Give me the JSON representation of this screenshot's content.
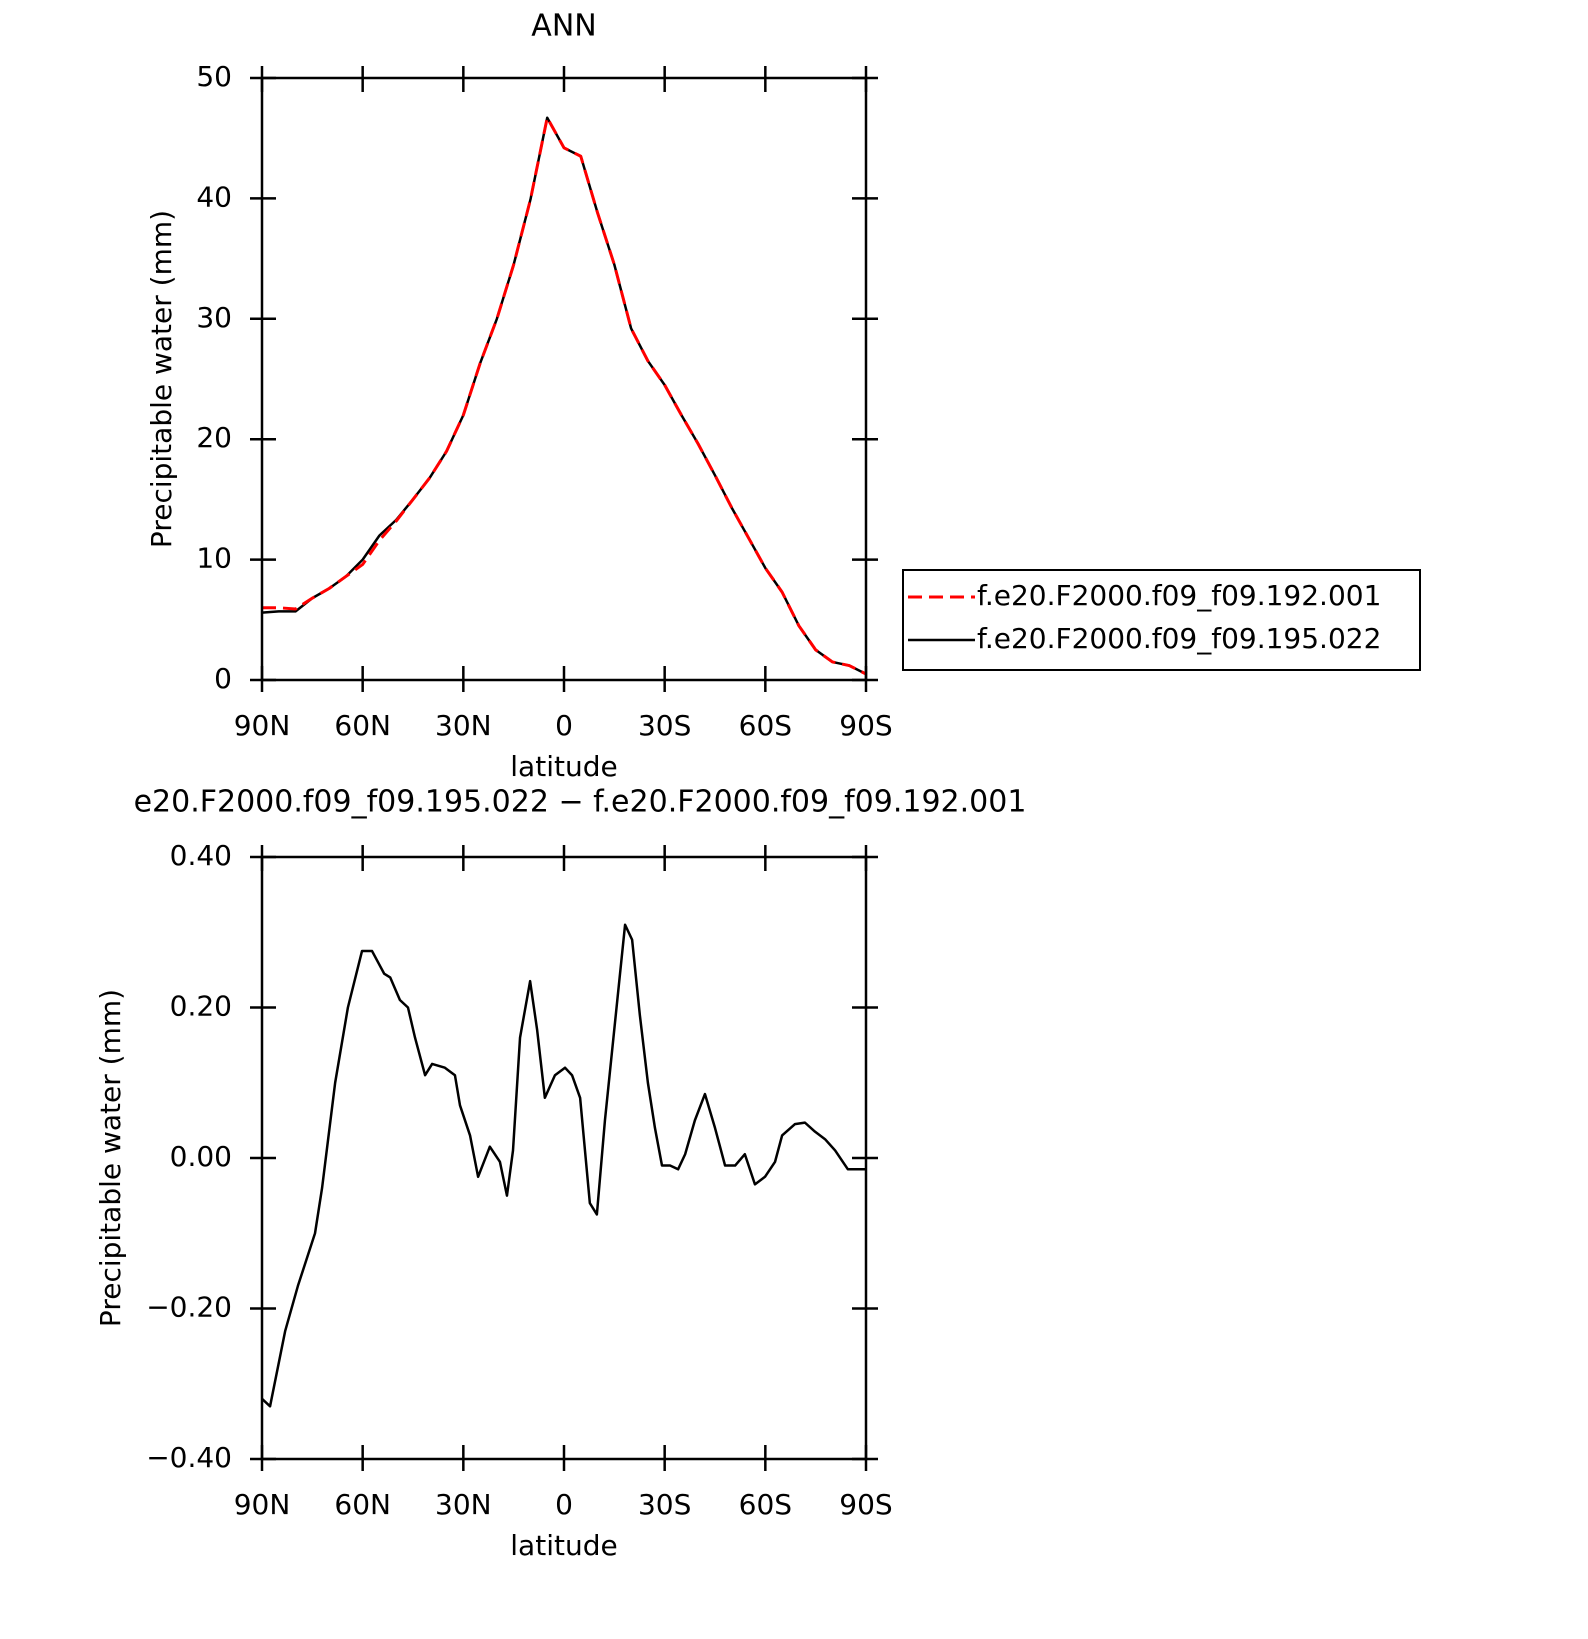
{
  "chart_data": [
    {
      "type": "line",
      "title": "ANN",
      "xlabel": "latitude",
      "ylabel": "Precipitable water (mm)",
      "x": [
        90,
        85,
        80,
        75,
        70,
        65,
        60,
        55,
        50,
        45,
        40,
        35,
        30,
        25,
        20,
        15,
        10,
        5,
        0,
        -5,
        -10,
        -15,
        -20,
        -25,
        -30,
        -35,
        -40,
        -45,
        -50,
        -55,
        -60,
        -65,
        -70,
        -75,
        -80,
        -85,
        -90
      ],
      "series": [
        {
          "name": "f.e20.F2000.f09_f09.192.001",
          "color": "#ff0000",
          "dash": true,
          "values": [
            6.0,
            6.0,
            5.9,
            6.8,
            7.6,
            8.6,
            9.6,
            11.6,
            13.2,
            15.0,
            16.8,
            19.0,
            22.0,
            26.3,
            30.0,
            34.5,
            39.9,
            46.7,
            44.2,
            43.5,
            38.8,
            34.5,
            29.2,
            26.5,
            24.5,
            22.0,
            19.6,
            17.0,
            14.3,
            11.8,
            9.3,
            7.3,
            4.5,
            2.5,
            1.5,
            1.2,
            0.5
          ]
        },
        {
          "name": "f.e20.F2000.f09_f09.195.022",
          "color": "#000000",
          "dash": false,
          "values": [
            5.6,
            5.7,
            5.7,
            6.8,
            7.6,
            8.6,
            10.0,
            12.0,
            13.3,
            15.0,
            16.8,
            19.0,
            22.0,
            26.3,
            30.0,
            34.5,
            39.9,
            46.7,
            44.2,
            43.5,
            38.8,
            34.5,
            29.2,
            26.5,
            24.5,
            22.0,
            19.6,
            17.0,
            14.3,
            11.8,
            9.3,
            7.3,
            4.5,
            2.5,
            1.5,
            1.2,
            0.5
          ]
        }
      ],
      "xlim": [
        90,
        -90
      ],
      "xticks": [
        {
          "value": 90,
          "label": "90N"
        },
        {
          "value": 60,
          "label": "60N"
        },
        {
          "value": 30,
          "label": "30N"
        },
        0,
        {
          "value": -30,
          "label": "30S"
        },
        {
          "value": -60,
          "label": "60S"
        },
        {
          "value": -90,
          "label": "90S"
        }
      ],
      "ylim": [
        0,
        50
      ],
      "yticks": [
        0,
        10,
        20,
        30,
        40,
        50
      ],
      "legend": "right"
    },
    {
      "type": "line",
      "title": "e20.F2000.f09_f09.195.022 − f.e20.F2000.f09_f09.192.001",
      "xlabel": "latitude",
      "ylabel": "Precipitable water (mm)",
      "x": [
        90.0,
        87.6,
        83.1,
        79.3,
        74.2,
        72.1,
        68.2,
        64.4,
        60.2,
        57.2,
        53.6,
        51.8,
        48.9,
        46.5,
        44.4,
        41.4,
        39.3,
        35.5,
        32.5,
        31.0,
        28.0,
        25.6,
        22.1,
        19.1,
        17.0,
        15.2,
        13.1,
        10.1,
        8.0,
        5.7,
        2.7,
        -0.3,
        -2.4,
        -4.8,
        -7.7,
        -9.8,
        -12.2,
        -15.2,
        -18.2,
        -20.3,
        -22.6,
        -25.0,
        -27.1,
        -29.2,
        -31.6,
        -34.0,
        -36.1,
        -39.0,
        -42.0,
        -45.0,
        -48.0,
        -51.0,
        -53.9,
        -56.9,
        -59.9,
        -62.9,
        -65.0,
        -68.8,
        -71.8,
        -74.8,
        -77.8,
        -80.8,
        -84.6,
        -87.6,
        -90.0
      ],
      "series": [
        {
          "color": "#000000",
          "dash": false,
          "values": [
            -0.32,
            -0.33,
            -0.23,
            -0.17,
            -0.1,
            -0.04,
            0.1,
            0.2,
            0.275,
            0.275,
            0.245,
            0.24,
            0.21,
            0.2,
            0.16,
            0.11,
            0.125,
            0.12,
            0.11,
            0.07,
            0.03,
            -0.025,
            0.015,
            -0.005,
            -0.05,
            0.01,
            0.16,
            0.235,
            0.17,
            0.08,
            0.11,
            0.12,
            0.11,
            0.08,
            -0.06,
            -0.075,
            0.05,
            0.18,
            0.31,
            0.29,
            0.19,
            0.1,
            0.04,
            -0.01,
            -0.01,
            -0.015,
            0.005,
            0.05,
            0.085,
            0.04,
            -0.01,
            -0.01,
            0.005,
            -0.035,
            -0.025,
            -0.005,
            0.03,
            0.045,
            0.047,
            0.035,
            0.025,
            0.01,
            -0.015,
            -0.015,
            -0.015
          ]
        }
      ],
      "xlim": [
        90,
        -90
      ],
      "xticks": [
        {
          "value": 90,
          "label": "90N"
        },
        {
          "value": 60,
          "label": "60N"
        },
        {
          "value": 30,
          "label": "30N"
        },
        0,
        {
          "value": -30,
          "label": "30S"
        },
        {
          "value": -60,
          "label": "60S"
        },
        {
          "value": -90,
          "label": "90S"
        }
      ],
      "ylim": [
        -0.4,
        0.4
      ],
      "yticks": [
        {
          "value": -0.4,
          "label": "−0.40"
        },
        {
          "value": -0.2,
          "label": "−0.20"
        },
        {
          "value": 0,
          "label": "0.00"
        },
        {
          "value": 0.2,
          "label": "0.20"
        },
        {
          "value": 0.4,
          "label": "0.40"
        }
      ]
    }
  ]
}
